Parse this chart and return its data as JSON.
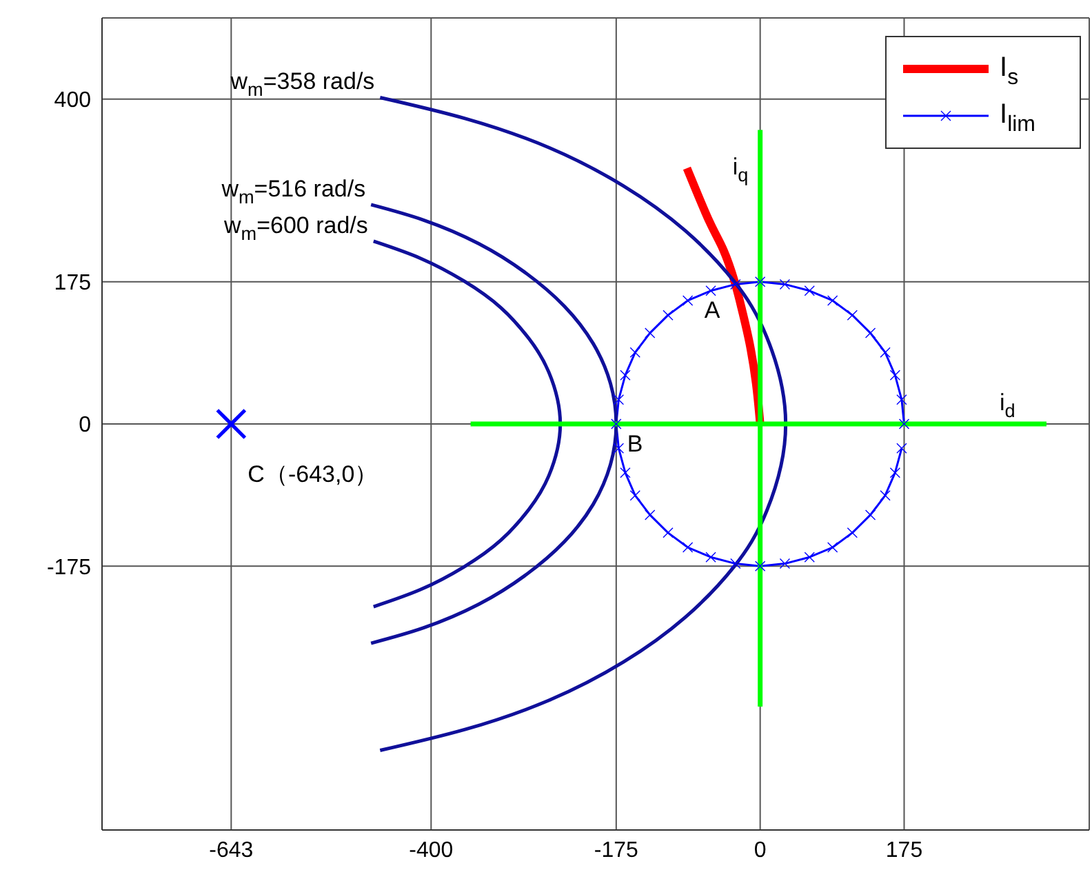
{
  "chart_data": {
    "type": "line",
    "xlim": [
      -800,
      400
    ],
    "ylim": [
      -500,
      500
    ],
    "xticks": [
      -643,
      -400,
      -175,
      0,
      175
    ],
    "yticks": [
      -175,
      0,
      175,
      400
    ],
    "grid": true,
    "legend": "top right",
    "series": [
      {
        "name": "I$_{s}$",
        "color": "#ff0000",
        "x": [
          0,
          -5,
          -13,
          -22,
          -31,
          -45,
          -62,
          -89
        ],
        "values": [
          0,
          50,
          100,
          140,
          175,
          215,
          250,
          315
        ]
      },
      {
        "name": "I$_{lim}$",
        "color": "#0000ff",
        "marker": "cross",
        "x": [
          175,
          172,
          164,
          152,
          134,
          112,
          88,
          60,
          30,
          0,
          -30,
          -60,
          -88,
          -112,
          -134,
          -152,
          -164,
          -172,
          -175,
          -172,
          -164,
          -152,
          -134,
          -112,
          -88,
          -60,
          -30,
          0,
          30,
          60,
          88,
          112,
          134,
          152,
          164,
          172
        ],
        "values": [
          0,
          30,
          60,
          88,
          112,
          134,
          152,
          164,
          172,
          175,
          172,
          164,
          152,
          134,
          112,
          88,
          60,
          30,
          0,
          -30,
          -60,
          -88,
          -112,
          -134,
          -152,
          -164,
          -172,
          -175,
          -172,
          -164,
          -152,
          -134,
          -112,
          -88,
          -60,
          -30
        ]
      },
      {
        "color": "#10109a",
        "x": [
          -462,
          -358,
          -256,
          -166,
          -91,
          -32,
          8,
          31,
          8,
          -32,
          -91,
          -166,
          -256,
          -358,
          -462
        ],
        "values": [
          402,
          376,
          340,
          293,
          238,
          176,
          107,
          0,
          -107,
          -176,
          -238,
          -293,
          -340,
          -376,
          -402
        ]
      },
      {
        "color": "#10109a",
        "x": [
          -473,
          -409,
          -342,
          -285,
          -238,
          -203,
          -182,
          -175,
          -182,
          -203,
          -238,
          -285,
          -342,
          -409,
          -473
        ],
        "values": [
          270,
          251,
          222,
          186,
          145,
          99,
          50,
          0,
          -50,
          -99,
          -145,
          -186,
          -222,
          -251,
          -270
        ]
      },
      {
        "color": "#10109a",
        "x": [
          -470,
          -413,
          -360,
          -315,
          -281,
          -257,
          -243,
          -257,
          -281,
          -315,
          -360,
          -413,
          -470
        ],
        "values": [
          225,
          204,
          176,
          143,
          105,
          64,
          0,
          -64,
          -105,
          -143,
          -176,
          -204,
          -225
        ]
      },
      {
        "color": "#00ff00",
        "x": [
          -352,
          348
        ],
        "values": [
          0,
          0
        ]
      },
      {
        "color": "#00ff00",
        "x": [
          0,
          0
        ],
        "values": [
          362,
          -348
        ]
      },
      {
        "type": "scatter",
        "color": "#0000ff",
        "marker": "cross",
        "x": [
          -643
        ],
        "values": [
          0
        ]
      }
    ],
    "annotations": [
      {
        "text": "w$_{m}$=358 rad/s",
        "x": -462,
        "y": 402
      },
      {
        "text": "w$_{m}$=516 rad/s",
        "x": -473,
        "y": 270
      },
      {
        "text": "w$_{m}$=600 rad/s",
        "x": -470,
        "y": 225
      },
      {
        "text": "A",
        "x": -31,
        "y": 175
      },
      {
        "text": "B",
        "x": -175,
        "y": 0
      },
      {
        "text": "C（-643,0）",
        "x": -643,
        "y": 0
      },
      {
        "text": "i$_{q}$",
        "x": 0,
        "y": 362
      },
      {
        "text": "i$_{d}$",
        "x": 348,
        "y": 0
      }
    ]
  }
}
